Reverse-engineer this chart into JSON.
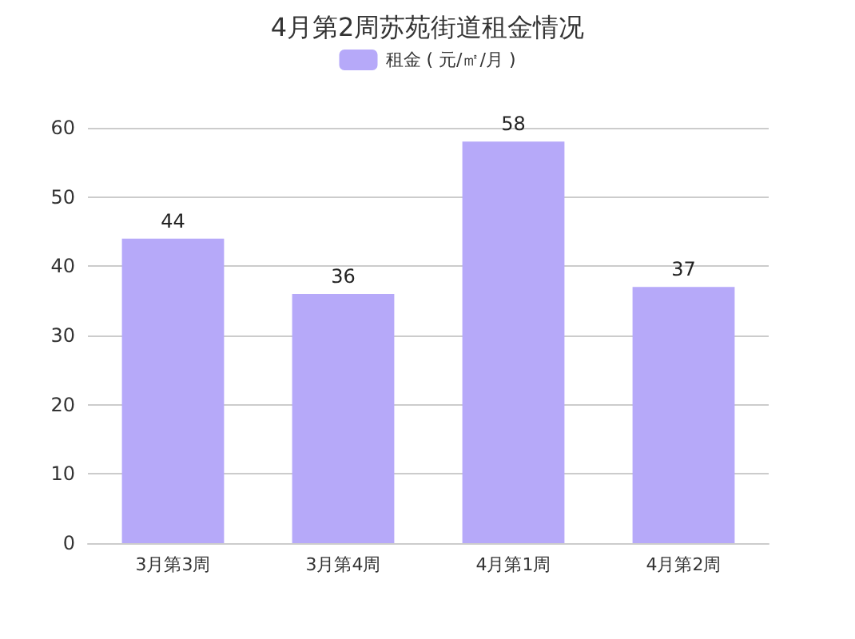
{
  "chart_data": {
    "type": "bar",
    "title": "4月第2周苏苑街道租金情况",
    "categories": [
      "3月第3周",
      "3月第4周",
      "4月第1周",
      "4月第2周"
    ],
    "series": [
      {
        "name": "租金 ( 元/㎡/月 )",
        "color": "#b6a9f9",
        "values": [
          44,
          36,
          58,
          37
        ]
      }
    ],
    "ylim": [
      0,
      60
    ],
    "yticks": [
      0,
      10,
      20,
      30,
      40,
      50,
      60
    ],
    "grid": "y",
    "legend": "top",
    "data_labels": true
  }
}
